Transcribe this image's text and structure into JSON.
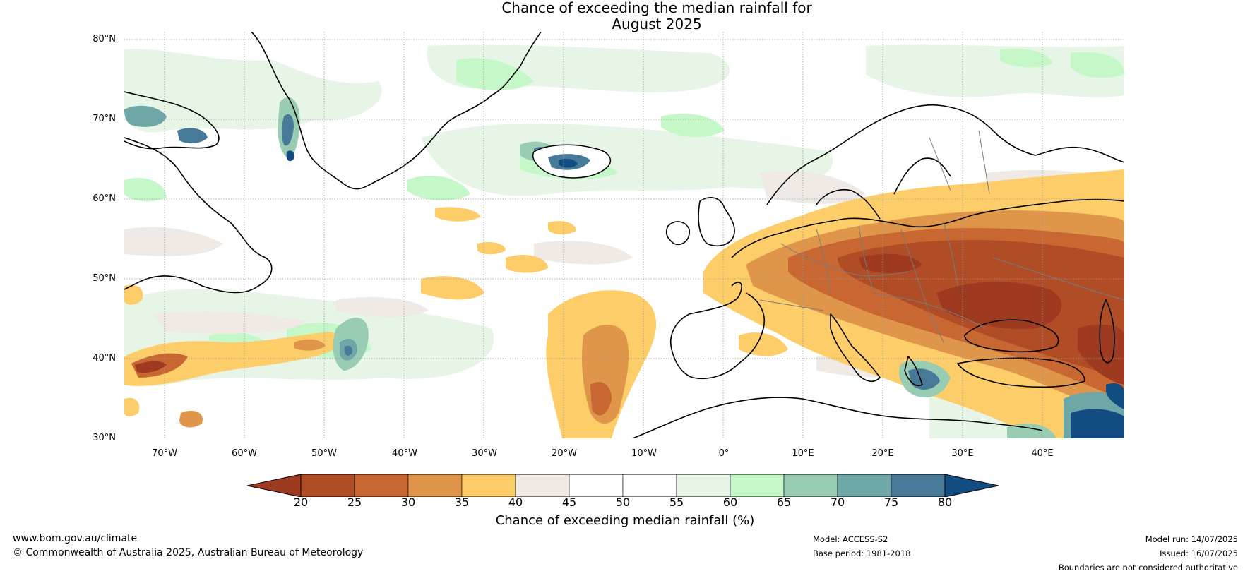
{
  "title": {
    "line1": "Chance of exceeding the median rainfall for",
    "line2": "August 2025"
  },
  "axes": {
    "lat_labels": [
      "80°N",
      "70°N",
      "60°N",
      "50°N",
      "40°N",
      "30°N"
    ],
    "lon_labels": [
      "70°W",
      "60°W",
      "50°W",
      "40°W",
      "30°W",
      "20°W",
      "10°W",
      "0°",
      "10°E",
      "20°E",
      "30°E",
      "40°E"
    ]
  },
  "colorbar": {
    "ticks": [
      "20",
      "25",
      "30",
      "35",
      "40",
      "45",
      "50",
      "55",
      "60",
      "65",
      "70",
      "75",
      "80"
    ],
    "label": "Chance of exceeding median rainfall (%)",
    "colors": {
      "below_20": "#9e3a1f",
      "20_25": "#b04d27",
      "25_30": "#c96732",
      "30_35": "#e0964a",
      "35_40": "#fdcd6a",
      "40_45": "#efeae5",
      "45_50": "#ffffff",
      "50_55": "#ffffff",
      "55_60": "#e6f5e6",
      "60_65": "#c5f7c9",
      "65_70": "#98cdb4",
      "70_75": "#6ea7a8",
      "75_80": "#477a98",
      "above_80": "#124c81"
    }
  },
  "footer": {
    "website": "www.bom.gov.au/climate",
    "copyright": "© Commonwealth of Australia 2025, Australian Bureau of Meteorology",
    "model": "Model: ACCESS-S2",
    "base_period": "Base period: 1981-2018",
    "model_run": "Model run: 14/07/2025",
    "issued": "Issued: 16/07/2025",
    "disclaimer": "Boundaries are not considered authoritative"
  }
}
